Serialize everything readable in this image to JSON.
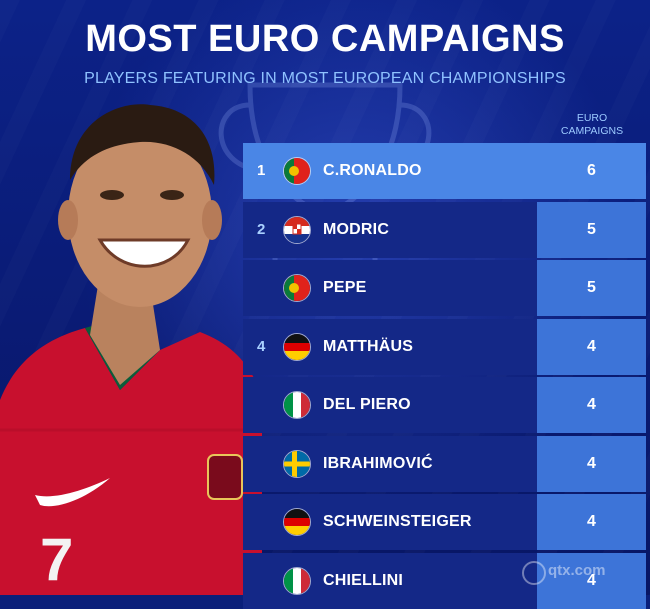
{
  "header": {
    "title": "MOST EURO CAMPAIGNS",
    "subtitle": "PLAYERS FEATURING IN MOST EUROPEAN CHAMPIONSHIPS"
  },
  "column_header": {
    "line1": "EURO",
    "line2": "CAMPAIGNS"
  },
  "player_image": {
    "shirt_number": "7"
  },
  "rows": [
    {
      "rank": "1",
      "country_flag": "portugal-flag",
      "name": "C.RONALDO",
      "campaigns": "6"
    },
    {
      "rank": "2",
      "country_flag": "croatia-flag",
      "name": "MODRIC",
      "campaigns": "5"
    },
    {
      "rank": "",
      "country_flag": "portugal-flag",
      "name": "PEPE",
      "campaigns": "5"
    },
    {
      "rank": "4",
      "country_flag": "germany-flag",
      "name": "MATTHÄUS",
      "campaigns": "4"
    },
    {
      "rank": "",
      "country_flag": "italy-flag",
      "name": "DEL PIERO",
      "campaigns": "4"
    },
    {
      "rank": "",
      "country_flag": "sweden-flag",
      "name": "IBRAHIMOVIĆ",
      "campaigns": "4"
    },
    {
      "rank": "",
      "country_flag": "germany-flag",
      "name": "SCHWEINSTEIGER",
      "campaigns": "4"
    },
    {
      "rank": "",
      "country_flag": "italy-flag",
      "name": "CHIELLINI",
      "campaigns": "4"
    }
  ],
  "watermark": "qtx.com",
  "colors": {
    "background": "#0a1f7a",
    "highlight_row": "#4a86e6",
    "value_cell": "#3d74d8",
    "subtitle": "#8fc2ff"
  }
}
